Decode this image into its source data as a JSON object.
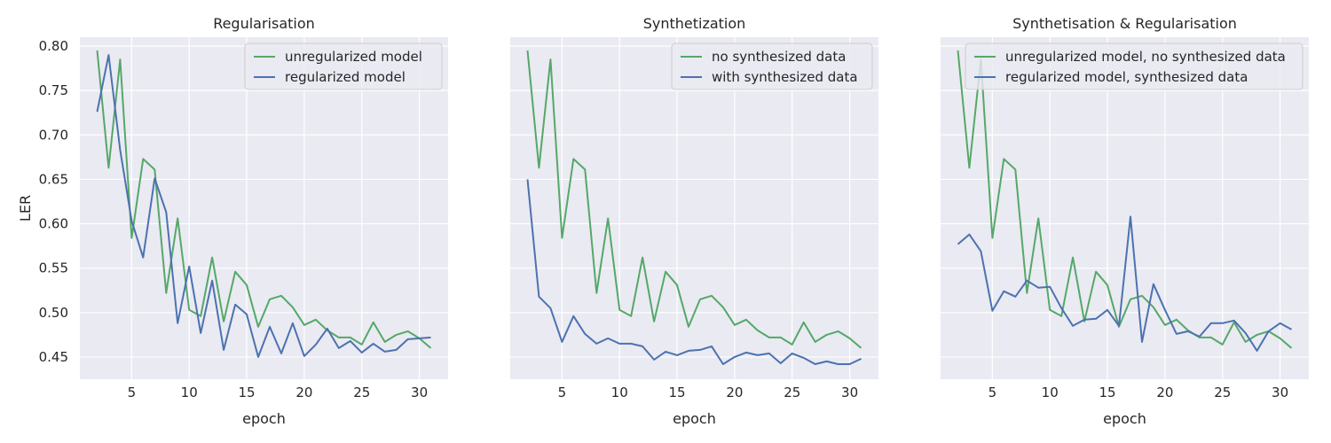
{
  "chart_data": [
    {
      "type": "line",
      "title": "Regularisation",
      "xlabel": "epoch",
      "ylabel": "LER",
      "x": [
        2,
        3,
        4,
        5,
        6,
        7,
        8,
        9,
        10,
        11,
        12,
        13,
        14,
        15,
        16,
        17,
        18,
        19,
        20,
        21,
        22,
        23,
        24,
        25,
        26,
        27,
        28,
        29,
        30,
        31
      ],
      "xlim": [
        0.5,
        32.5
      ],
      "ylim": [
        0.425,
        0.81
      ],
      "xticks": [
        5,
        10,
        15,
        20,
        25,
        30
      ],
      "yticks": [
        0.45,
        0.5,
        0.55,
        0.6,
        0.65,
        0.7,
        0.75,
        0.8
      ],
      "grid": true,
      "legend": "top-right",
      "series": [
        {
          "name": "unregularized model",
          "color": "#55a868",
          "values": [
            0.795,
            0.663,
            0.785,
            0.584,
            0.673,
            0.661,
            0.522,
            0.606,
            0.503,
            0.496,
            0.562,
            0.49,
            0.546,
            0.531,
            0.484,
            0.515,
            0.519,
            0.506,
            0.486,
            0.492,
            0.48,
            0.472,
            0.472,
            0.464,
            0.489,
            0.467,
            0.475,
            0.479,
            0.471,
            0.46
          ]
        },
        {
          "name": "regularized model",
          "color": "#4c72b0",
          "values": [
            0.726,
            0.79,
            0.683,
            0.603,
            0.562,
            0.651,
            0.613,
            0.488,
            0.552,
            0.477,
            0.536,
            0.458,
            0.509,
            0.498,
            0.45,
            0.484,
            0.454,
            0.488,
            0.451,
            0.464,
            0.482,
            0.46,
            0.468,
            0.455,
            0.465,
            0.456,
            0.458,
            0.47,
            0.471,
            0.472
          ]
        }
      ]
    },
    {
      "type": "line",
      "title": "Synthetization",
      "xlabel": "epoch",
      "ylabel": "",
      "x": [
        2,
        3,
        4,
        5,
        6,
        7,
        8,
        9,
        10,
        11,
        12,
        13,
        14,
        15,
        16,
        17,
        18,
        19,
        20,
        21,
        22,
        23,
        24,
        25,
        26,
        27,
        28,
        29,
        30,
        31
      ],
      "xlim": [
        0.5,
        32.5
      ],
      "ylim": [
        0.425,
        0.81
      ],
      "xticks": [
        5,
        10,
        15,
        20,
        25,
        30
      ],
      "yticks": [
        0.45,
        0.5,
        0.55,
        0.6,
        0.65,
        0.7,
        0.75,
        0.8
      ],
      "grid": true,
      "legend": "top-right",
      "series": [
        {
          "name": "no synthesized data",
          "color": "#55a868",
          "values": [
            0.795,
            0.663,
            0.785,
            0.584,
            0.673,
            0.661,
            0.522,
            0.606,
            0.503,
            0.496,
            0.562,
            0.49,
            0.546,
            0.531,
            0.484,
            0.515,
            0.519,
            0.506,
            0.486,
            0.492,
            0.48,
            0.472,
            0.472,
            0.464,
            0.489,
            0.467,
            0.475,
            0.479,
            0.471,
            0.46
          ]
        },
        {
          "name": "with synthesized data",
          "color": "#4c72b0",
          "values": [
            0.65,
            0.518,
            0.505,
            0.467,
            0.496,
            0.476,
            0.465,
            0.471,
            0.465,
            0.465,
            0.462,
            0.447,
            0.456,
            0.452,
            0.457,
            0.458,
            0.462,
            0.442,
            0.45,
            0.455,
            0.452,
            0.454,
            0.443,
            0.454,
            0.449,
            0.442,
            0.445,
            0.442,
            0.442,
            0.448
          ]
        }
      ]
    },
    {
      "type": "line",
      "title": "Synthetisation & Regularisation",
      "xlabel": "epoch",
      "ylabel": "",
      "x": [
        2,
        3,
        4,
        5,
        6,
        7,
        8,
        9,
        10,
        11,
        12,
        13,
        14,
        15,
        16,
        17,
        18,
        19,
        20,
        21,
        22,
        23,
        24,
        25,
        26,
        27,
        28,
        29,
        30,
        31
      ],
      "xlim": [
        0.5,
        32.5
      ],
      "ylim": [
        0.425,
        0.81
      ],
      "xticks": [
        5,
        10,
        15,
        20,
        25,
        30
      ],
      "yticks": [
        0.45,
        0.5,
        0.55,
        0.6,
        0.65,
        0.7,
        0.75,
        0.8
      ],
      "grid": true,
      "legend": "top-right",
      "series": [
        {
          "name": "unregularized model, no synthesized data",
          "color": "#55a868",
          "values": [
            0.795,
            0.663,
            0.785,
            0.584,
            0.673,
            0.661,
            0.522,
            0.606,
            0.503,
            0.496,
            0.562,
            0.49,
            0.546,
            0.531,
            0.484,
            0.515,
            0.519,
            0.506,
            0.486,
            0.492,
            0.48,
            0.472,
            0.472,
            0.464,
            0.489,
            0.467,
            0.475,
            0.479,
            0.471,
            0.46
          ]
        },
        {
          "name": "regularized model, synthesized data",
          "color": "#4c72b0",
          "values": [
            0.577,
            0.588,
            0.569,
            0.502,
            0.524,
            0.518,
            0.536,
            0.528,
            0.529,
            0.505,
            0.485,
            0.492,
            0.493,
            0.503,
            0.485,
            0.608,
            0.467,
            0.532,
            0.503,
            0.476,
            0.479,
            0.473,
            0.488,
            0.488,
            0.491,
            0.477,
            0.457,
            0.479,
            0.488,
            0.481
          ]
        }
      ]
    }
  ]
}
